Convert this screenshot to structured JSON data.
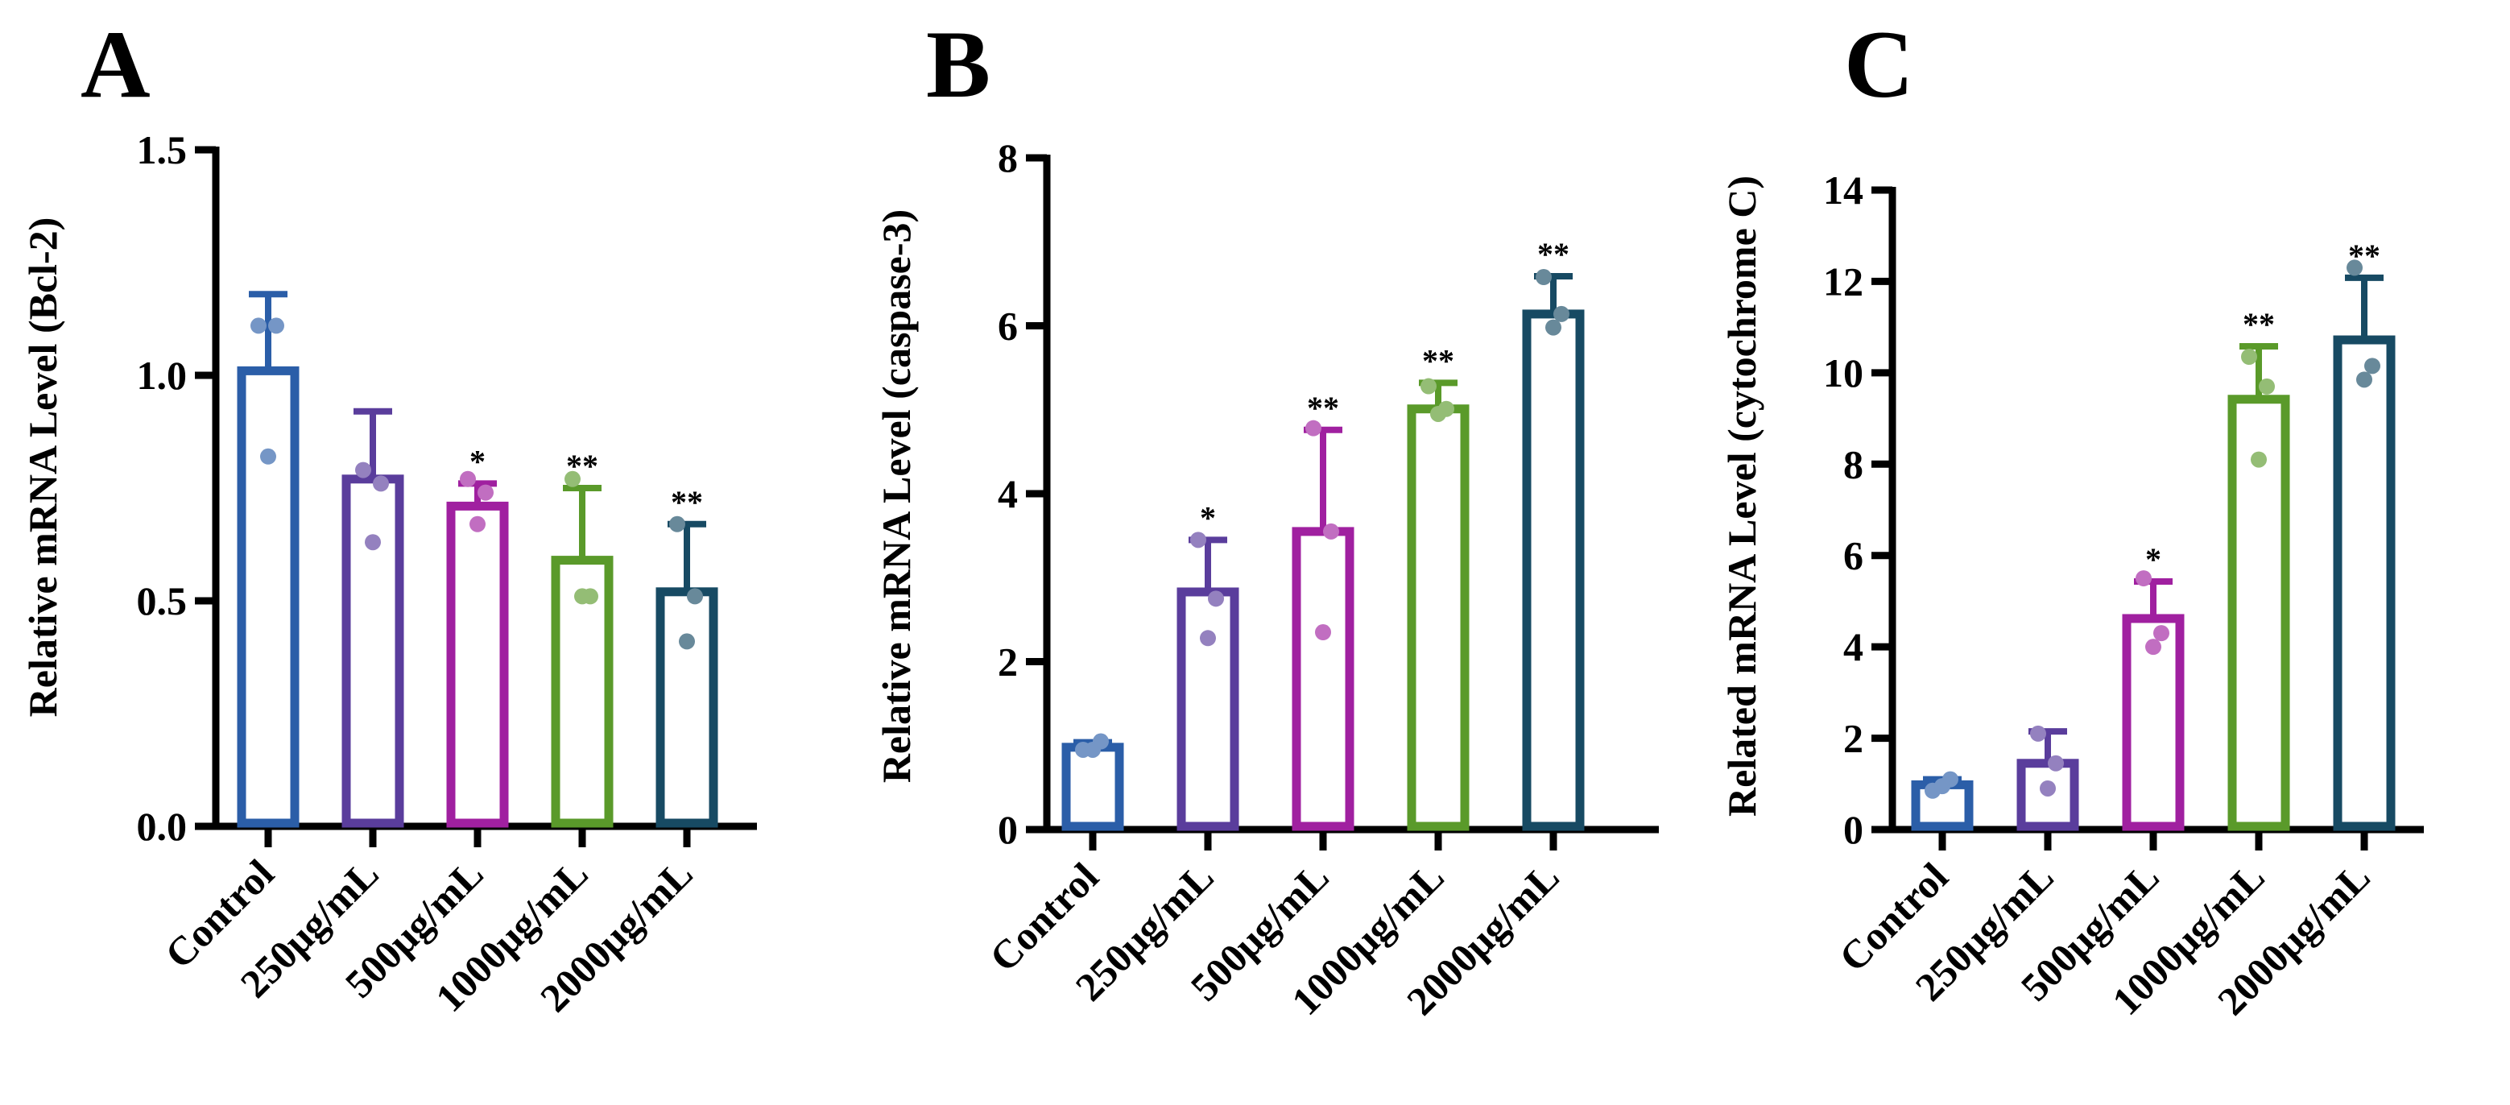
{
  "colors": {
    "control": "#2b5ea8",
    "250": "#5a3d9c",
    "500": "#a020a0",
    "1000": "#5a9a2a",
    "2000": "#174a63",
    "axis": "#000000"
  },
  "chart_data": [
    {
      "type": "bar",
      "panel": "A",
      "ylabel": "Relative mRNA Level (Bcl-2)",
      "xlabel": "",
      "ylim": [
        0,
        1.5
      ],
      "yticks": [
        0,
        0.5,
        1.0,
        1.5
      ],
      "ytick_labels": [
        "0.0",
        "0.5",
        "1.0",
        "1.5"
      ],
      "categories": [
        "Control",
        "250μg/mL",
        "500μg/mL",
        "1000μg/mL",
        "2000μg/mL"
      ],
      "values": [
        1.01,
        0.77,
        0.71,
        0.59,
        0.52
      ],
      "errors": [
        0.17,
        0.15,
        0.05,
        0.16,
        0.15
      ],
      "points": [
        [
          1.11,
          1.11,
          0.82
        ],
        [
          0.79,
          0.76,
          0.63
        ],
        [
          0.77,
          0.74,
          0.67
        ],
        [
          0.77,
          0.51,
          0.51
        ],
        [
          0.67,
          0.51,
          0.41
        ]
      ],
      "significance": [
        "",
        "",
        "*",
        "**",
        "**"
      ],
      "grid": false
    },
    {
      "type": "bar",
      "panel": "B",
      "ylabel": "Relative mRNA Level (caspase-3)",
      "xlabel": "",
      "ylim": [
        0,
        8
      ],
      "yticks": [
        0,
        2,
        4,
        6,
        8
      ],
      "ytick_labels": [
        "0",
        "2",
        "4",
        "6",
        "8"
      ],
      "categories": [
        "Control",
        "250μg/mL",
        "500μg/mL",
        "1000μg/mL",
        "2000μg/mL"
      ],
      "values": [
        0.98,
        2.83,
        3.55,
        5.01,
        6.14
      ],
      "errors": [
        0.06,
        0.62,
        1.21,
        0.31,
        0.45
      ],
      "points": [
        [
          0.95,
          1.05,
          0.95
        ],
        [
          3.45,
          2.75,
          2.28
        ],
        [
          4.78,
          3.55,
          2.35
        ],
        [
          5.28,
          5.01,
          4.95
        ],
        [
          6.58,
          6.14,
          5.98
        ]
      ],
      "significance": [
        "",
        "*",
        "**",
        "**",
        "**"
      ],
      "grid": false
    },
    {
      "type": "bar",
      "panel": "C",
      "ylabel": "Related  mRNA Level  (cytochrome C)",
      "xlabel": "",
      "ylim": [
        0,
        14
      ],
      "yticks": [
        0,
        2,
        4,
        6,
        8,
        10,
        12,
        14
      ],
      "ytick_labels": [
        "0",
        "2",
        "4",
        "6",
        "8",
        "10",
        "12",
        "14"
      ],
      "categories": [
        "Control",
        "250μg/mL",
        "500μg/mL",
        "1000μg/mL",
        "2000μg/mL"
      ],
      "values": [
        0.98,
        1.45,
        4.62,
        9.42,
        10.72
      ],
      "errors": [
        0.12,
        0.7,
        0.81,
        1.16,
        1.36
      ],
      "points": [
        [
          0.85,
          1.1,
          0.95
        ],
        [
          2.1,
          1.45,
          0.9
        ],
        [
          5.5,
          4.3,
          4.0
        ],
        [
          10.35,
          9.7,
          8.1
        ],
        [
          12.3,
          10.15,
          9.85
        ]
      ],
      "significance": [
        "",
        "",
        "*",
        "**",
        "**"
      ],
      "grid": false
    }
  ]
}
